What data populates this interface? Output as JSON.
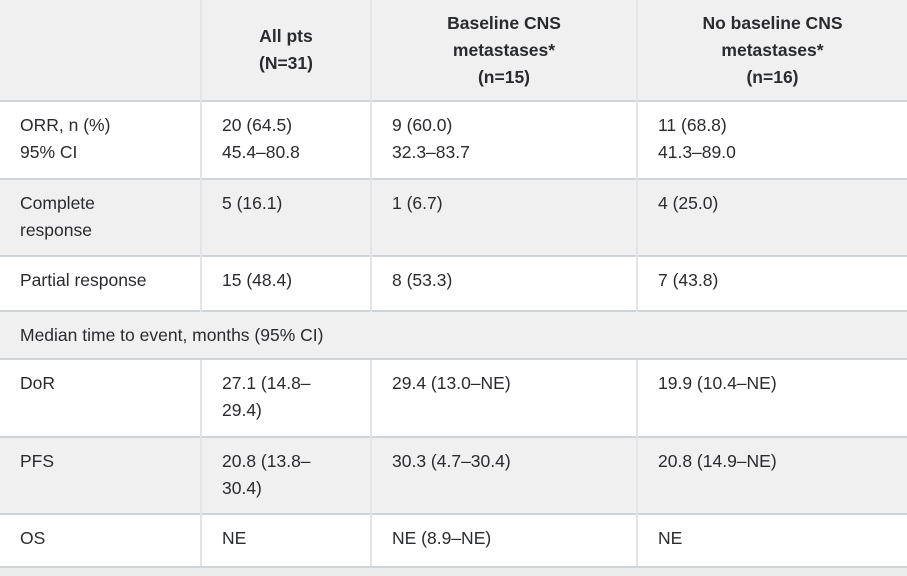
{
  "colors": {
    "stripe": "#f0f0f1",
    "white": "#ffffff",
    "row_border": "#cfd4d9",
    "col_border": "#e2e4e7",
    "text": "#292b2e",
    "page_bg": "#ebeceb"
  },
  "table": {
    "columns": [
      {
        "label": ""
      },
      {
        "label": "All pts\n(N=31)"
      },
      {
        "label": "Baseline CNS\nmetastases*\n(n=15)"
      },
      {
        "label": "No baseline CNS\nmetastases*\n(n=16)"
      }
    ],
    "rows": [
      {
        "cells": [
          "ORR, n (%)\n95% CI",
          "20 (64.5)\n45.4–80.8",
          "9 (60.0)\n32.3–83.7",
          "11 (68.8)\n41.3–89.0"
        ]
      },
      {
        "cells": [
          "Complete\nresponse",
          "5 (16.1)",
          "1 (6.7)",
          "4 (25.0)"
        ]
      },
      {
        "cells": [
          "Partial response",
          "15 (48.4)",
          "8 (53.3)",
          "7 (43.8)"
        ]
      },
      {
        "section": "Median time to event, months (95% CI)"
      },
      {
        "cells": [
          "DoR",
          "27.1 (14.8–\n29.4)",
          "29.4 (13.0–NE)",
          "19.9 (10.4–NE)"
        ]
      },
      {
        "cells": [
          "PFS",
          "20.8 (13.8–\n30.4)",
          "30.3 (4.7–30.4)",
          "20.8 (14.9–NE)"
        ]
      },
      {
        "cells": [
          "OS",
          "NE",
          "NE (8.9–NE)",
          "NE"
        ]
      }
    ]
  },
  "chart_data": {
    "type": "table",
    "columns": [
      "",
      "All pts (N=31)",
      "Baseline CNS metastases* (n=15)",
      "No baseline CNS metastases* (n=16)"
    ],
    "rows": [
      {
        "label": "ORR, n (%) / 95% CI",
        "all_pts": "20 (64.5) / 45.4–80.8",
        "baseline_cns": "9 (60.0) / 32.3–83.7",
        "no_baseline_cns": "11 (68.8) / 41.3–89.0"
      },
      {
        "label": "Complete response",
        "all_pts": "5 (16.1)",
        "baseline_cns": "1 (6.7)",
        "no_baseline_cns": "4 (25.0)"
      },
      {
        "label": "Partial response",
        "all_pts": "15 (48.4)",
        "baseline_cns": "8 (53.3)",
        "no_baseline_cns": "7 (43.8)"
      },
      {
        "section": "Median time to event, months (95% CI)"
      },
      {
        "label": "DoR",
        "all_pts": "27.1 (14.8–29.4)",
        "baseline_cns": "29.4 (13.0–NE)",
        "no_baseline_cns": "19.9 (10.4–NE)"
      },
      {
        "label": "PFS",
        "all_pts": "20.8 (13.8–30.4)",
        "baseline_cns": "30.3 (4.7–30.4)",
        "no_baseline_cns": "20.8 (14.9–NE)"
      },
      {
        "label": "OS",
        "all_pts": "NE",
        "baseline_cns": "NE (8.9–NE)",
        "no_baseline_cns": "NE"
      }
    ]
  }
}
